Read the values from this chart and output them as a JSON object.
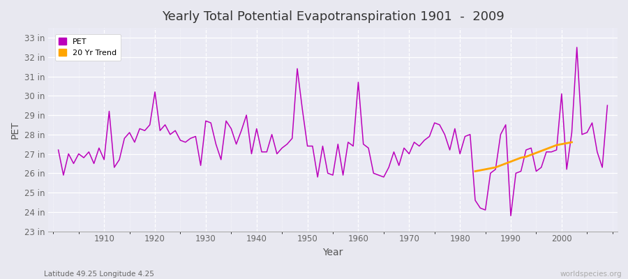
{
  "title": "Yearly Total Potential Evapotranspiration 1901  -  2009",
  "xlabel": "Year",
  "ylabel": "PET",
  "footnote_left": "Latitude 49.25 Longitude 4.25",
  "footnote_right": "worldspecies.org",
  "bg_color": "#e8e8f0",
  "plot_bg_color": "#eaeaf4",
  "line_color": "#bb00bb",
  "trend_color": "#ffa500",
  "years": [
    1901,
    1902,
    1903,
    1904,
    1905,
    1906,
    1907,
    1908,
    1909,
    1910,
    1911,
    1912,
    1913,
    1914,
    1915,
    1916,
    1917,
    1918,
    1919,
    1920,
    1921,
    1922,
    1923,
    1924,
    1925,
    1926,
    1927,
    1928,
    1929,
    1930,
    1931,
    1932,
    1933,
    1934,
    1935,
    1936,
    1937,
    1938,
    1939,
    1940,
    1941,
    1942,
    1943,
    1944,
    1945,
    1946,
    1947,
    1948,
    1949,
    1950,
    1951,
    1952,
    1953,
    1954,
    1955,
    1956,
    1957,
    1958,
    1959,
    1960,
    1961,
    1962,
    1963,
    1964,
    1965,
    1966,
    1967,
    1968,
    1969,
    1970,
    1971,
    1972,
    1973,
    1974,
    1975,
    1976,
    1977,
    1978,
    1979,
    1980,
    1981,
    1982,
    1983,
    1984,
    1985,
    1986,
    1987,
    1988,
    1989,
    1990,
    1991,
    1992,
    1993,
    1994,
    1995,
    1996,
    1997,
    1998,
    1999,
    2000,
    2001,
    2002,
    2003,
    2004,
    2005,
    2006,
    2007,
    2008,
    2009
  ],
  "pet": [
    27.2,
    25.9,
    27.0,
    26.5,
    27.0,
    26.8,
    27.1,
    26.5,
    27.3,
    26.7,
    29.2,
    26.3,
    26.7,
    27.8,
    28.1,
    27.6,
    28.3,
    28.2,
    28.5,
    30.2,
    28.2,
    28.5,
    28.0,
    28.2,
    27.7,
    27.6,
    27.8,
    27.9,
    26.4,
    28.7,
    28.6,
    27.5,
    26.7,
    28.7,
    28.3,
    27.5,
    28.2,
    29.0,
    27.0,
    28.3,
    27.1,
    27.1,
    28.0,
    27.0,
    27.3,
    27.5,
    27.8,
    31.4,
    29.3,
    27.4,
    27.4,
    25.8,
    27.4,
    26.0,
    25.9,
    27.5,
    25.9,
    27.6,
    27.4,
    30.7,
    27.5,
    27.3,
    26.0,
    25.9,
    25.8,
    26.3,
    27.1,
    26.4,
    27.3,
    27.0,
    27.6,
    27.4,
    27.7,
    27.9,
    28.6,
    28.5,
    28.0,
    27.2,
    28.3,
    27.0,
    27.9,
    28.0,
    24.6,
    24.2,
    24.1,
    26.0,
    26.2,
    28.0,
    28.5,
    23.8,
    26.0,
    26.1,
    27.2,
    27.3,
    26.1,
    26.3,
    27.1,
    27.1,
    27.2,
    30.1,
    26.2,
    28.1,
    32.5,
    28.0,
    28.1,
    28.6,
    27.1,
    26.3,
    29.5
  ],
  "trend_years": [
    1983,
    1984,
    1985,
    1986,
    1987,
    1988,
    1989,
    1990,
    1991,
    1992,
    1993,
    1994,
    1995,
    1996,
    1997,
    1998,
    1999,
    2000,
    2001,
    2002
  ],
  "trend_values": [
    26.1,
    26.15,
    26.2,
    26.25,
    26.3,
    26.4,
    26.5,
    26.6,
    26.7,
    26.8,
    26.85,
    26.95,
    27.05,
    27.15,
    27.25,
    27.35,
    27.45,
    27.5,
    27.55,
    27.6
  ],
  "ylim": [
    23.0,
    33.5
  ],
  "yticks": [
    23,
    24,
    25,
    26,
    27,
    28,
    29,
    30,
    31,
    32,
    33
  ],
  "ytick_labels": [
    "23 in",
    "24 in",
    "25 in",
    "26 in",
    "27 in",
    "28 in",
    "29 in",
    "30 in",
    "31 in",
    "32 in",
    "33 in"
  ],
  "xlim": [
    1899,
    2011
  ],
  "xticks": [
    1910,
    1920,
    1930,
    1940,
    1950,
    1960,
    1970,
    1980,
    1990,
    2000
  ],
  "xtick_labels": [
    "1910",
    "1920",
    "1930",
    "1940",
    "1950",
    "1960",
    "1970",
    "1980",
    "1990",
    "2000"
  ]
}
